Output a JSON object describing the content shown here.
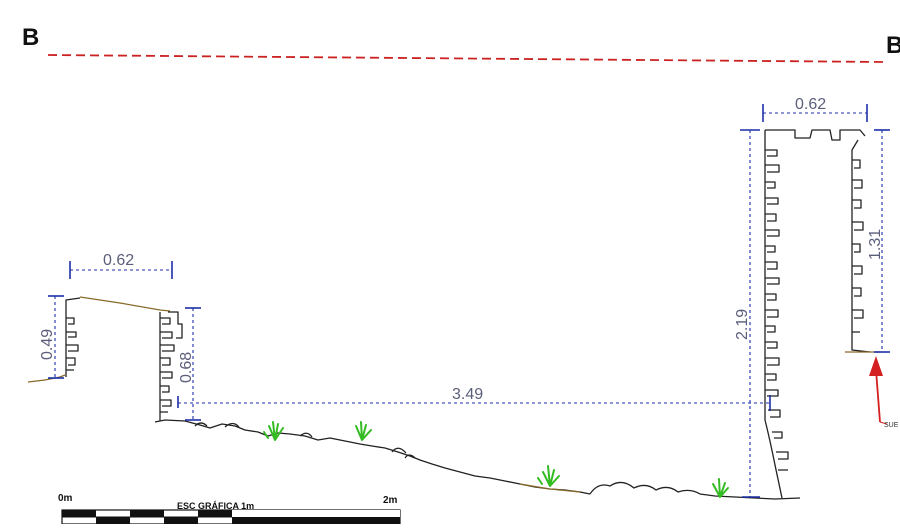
{
  "section": {
    "left_label": "B",
    "right_label": "B",
    "line_color": "#cc2222"
  },
  "dimensions": {
    "left_width": "0.62",
    "left_height_outer": "0.49",
    "left_height_inner": "0.68",
    "span": "3.49",
    "right_width": "0.62",
    "right_height_outer": "2.19",
    "right_height_inner": "1.31",
    "color": "#1c2fa8"
  },
  "annotation": {
    "arrow_text": "SUE",
    "arrow_color": "#d42020"
  },
  "scale_bar": {
    "start_label": "0m",
    "title": "ESC GRÁFICA 1m",
    "end_label": "2m"
  },
  "colors": {
    "ground": "#8a6a2a",
    "wall": "#222222",
    "vegetation": "#33bb22"
  }
}
